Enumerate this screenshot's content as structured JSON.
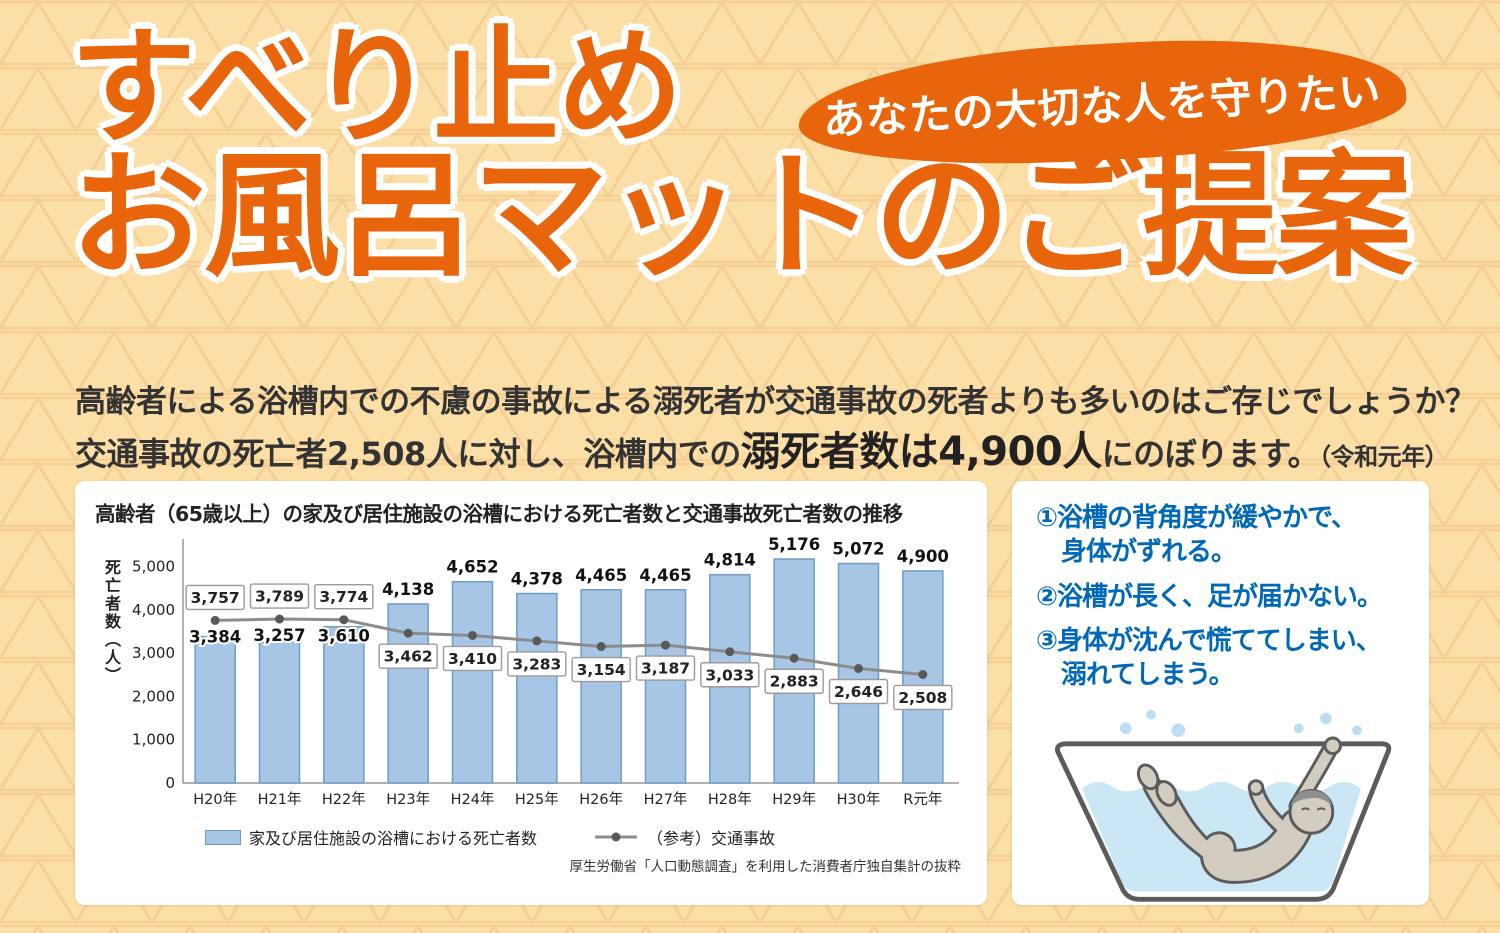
{
  "page": {
    "bg_color": "#FBDFA7",
    "pattern_color": "#F2C98E",
    "accent_orange": "#E8650C",
    "accent_blue": "#0068B7"
  },
  "header": {
    "title_line1": "すべり止め",
    "title_line2": "お風呂マットのご提案",
    "bubble_text": "あなたの大切な人を守りたい"
  },
  "intro": {
    "line1": "高齢者による浴槽内での不慮の事故による溺死者が交通事故の死者よりも多いのはご存じでしょうか？",
    "line2_prefix": "交通事故の死亡者2,508人に対し、浴槽内での",
    "line2_bold": "溺死者数は4,900人",
    "line2_suffix": "にのぼります。",
    "line2_note": "（令和元年）"
  },
  "chart_data": {
    "type": "bar+line",
    "title": "高齢者（65歳以上）の家及び居住施設の浴槽における死亡者数と交通事故死亡者数の推移",
    "ylabel": "死亡者数（人）",
    "ylim": [
      0,
      5500
    ],
    "yticks": [
      0,
      1000,
      2000,
      3000,
      4000,
      5000
    ],
    "grid": false,
    "legend_position": "bottom",
    "categories": [
      "H20年",
      "H21年",
      "H22年",
      "H23年",
      "H24年",
      "H25年",
      "H26年",
      "H27年",
      "H28年",
      "H29年",
      "H30年",
      "R元年"
    ],
    "series": [
      {
        "name": "家及び居住施設の浴槽における死亡者数",
        "type": "bar",
        "color": "#A7C6E6",
        "border": "#6F9CC4",
        "values": [
          3384,
          3257,
          3610,
          4138,
          4652,
          4378,
          4465,
          4465,
          4814,
          5176,
          5072,
          4900
        ]
      },
      {
        "name": "（参考）交通事故",
        "type": "line",
        "color": "#8C8C8C",
        "marker": "#595959",
        "values": [
          3757,
          3789,
          3774,
          3462,
          3410,
          3283,
          3154,
          3187,
          3033,
          2883,
          2646,
          2508
        ]
      }
    ],
    "source": "厚生労働省「人口動態調査」を利用した消費者庁独自集計の抜粋"
  },
  "reasons": {
    "items": [
      [
        "①浴槽の背角度が緩やかで、",
        "　身体がずれる。"
      ],
      [
        "②浴槽が長く、足が届かない。"
      ],
      [
        "③身体が沈んで慌ててしまい、",
        "　溺れてしまう。"
      ]
    ],
    "illustration": "elderly-person-slipping-in-bathtub"
  }
}
